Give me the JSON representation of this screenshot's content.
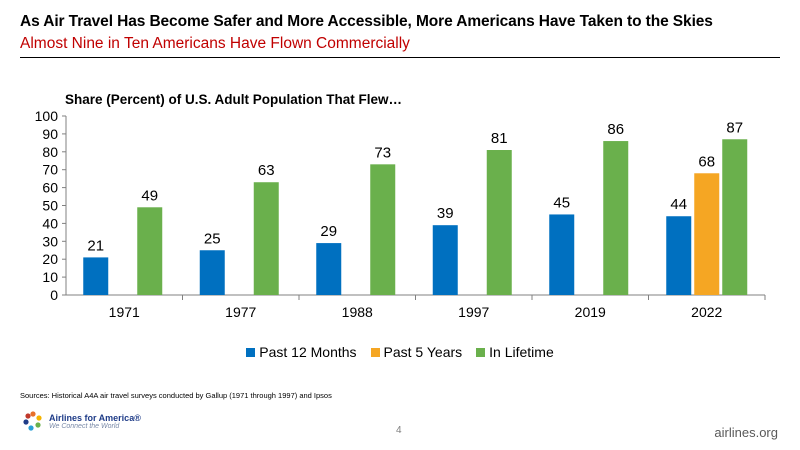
{
  "header": {
    "title": "As Air Travel Has Become Safer and More Accessible, More Americans Have Taken to the Skies",
    "subtitle": "Almost Nine in Ten Americans Have Flown Commercially"
  },
  "chart_data": {
    "type": "bar",
    "title": "Share (Percent) of U.S. Adult Population That Flew…",
    "categories": [
      "1971",
      "1977",
      "1988",
      "1997",
      "2019",
      "2022"
    ],
    "series": [
      {
        "name": "Past 12 Months",
        "color": "#0070c0",
        "values": [
          21,
          25,
          29,
          39,
          45,
          44
        ]
      },
      {
        "name": "Past 5 Years",
        "color": "#f5a623",
        "values": [
          null,
          null,
          null,
          null,
          null,
          68
        ]
      },
      {
        "name": "In Lifetime",
        "color": "#6ab04c",
        "values": [
          49,
          63,
          73,
          81,
          86,
          87
        ]
      }
    ],
    "ylim": [
      0,
      100
    ],
    "yticks": [
      0,
      10,
      20,
      30,
      40,
      50,
      60,
      70,
      80,
      90,
      100
    ],
    "xlabel": "",
    "ylabel": "",
    "grid": false,
    "legend": "bottom"
  },
  "footer": {
    "source": "Sources: Historical A4A air travel surveys conducted by Gallup (1971 through 1997) and Ipsos",
    "logo_name": "Airlines for America®",
    "logo_tagline": "We Connect the World",
    "page_number": "4",
    "site": "airlines.org"
  }
}
